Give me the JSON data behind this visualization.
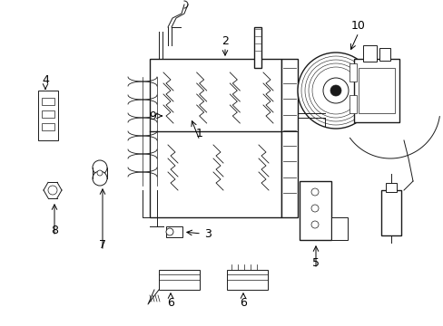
{
  "bg_color": "#ffffff",
  "line_color": "#1a1a1a",
  "label_color": "#000000",
  "font_size": 9,
  "figsize": [
    4.89,
    3.6
  ],
  "dpi": 100
}
